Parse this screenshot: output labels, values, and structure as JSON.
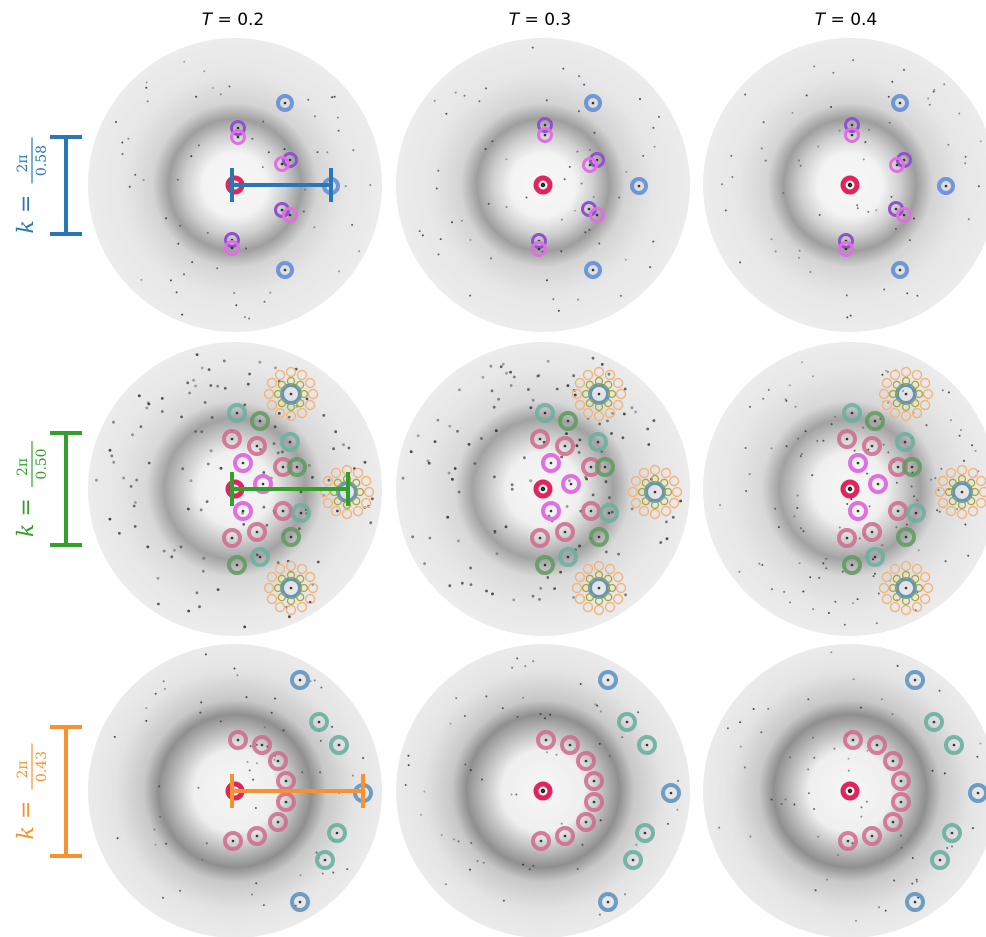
{
  "columns": [
    {
      "var": "T",
      "eq": " = ",
      "value": "0.2"
    },
    {
      "var": "T",
      "eq": " = ",
      "value": "0.3"
    },
    {
      "var": "T",
      "eq": " = ",
      "value": "0.4"
    }
  ],
  "rows": [
    {
      "prefix": "k = ",
      "numerator": "2π",
      "denominator": "0.58",
      "color": "#2878b5"
    },
    {
      "prefix": "k = ",
      "numerator": "2π",
      "denominator": "0.50",
      "color": "#33a02c"
    },
    {
      "prefix": "k = ",
      "numerator": "2π",
      "denominator": "0.43",
      "color": "#f7922e"
    }
  ],
  "marker_colors": {
    "center": "#e0245e",
    "blue": "#6f96d8",
    "magenta": "#e070e0",
    "purple": "#9050d0",
    "pink": "#cf6a8d",
    "green": "#5e9a5e",
    "teal": "#6ab0a0",
    "steel": "#5f95c0",
    "orange_ring": "#f2b47e",
    "olive_ring": "#a8a834"
  }
}
